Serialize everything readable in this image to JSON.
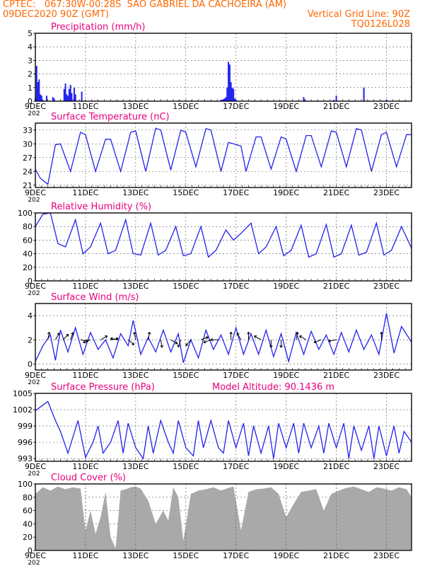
{
  "header": {
    "left_line1": "CPTEC:   067:30W-00:28S  SAO GABRIEL DA CACHOEIRA (AM)",
    "left_line2": "09DEC2020 90Z (GMT)",
    "right_line2": "Vertical Grid Line: 90Z",
    "right_line3": "TQ0126L028"
  },
  "colors": {
    "header": "#ff6600",
    "title": "#e6007e",
    "series": "#2222ee",
    "cloud": "#a9a9a9",
    "grid": "#555555"
  },
  "chart_data": [
    {
      "type": "bar",
      "title": "Precipitation (mm/h)",
      "ylim": [
        0,
        5
      ],
      "yticks": [
        0,
        1,
        2,
        3,
        4,
        5
      ],
      "x_range_days": [
        9,
        24
      ],
      "x_tick_days": [
        9,
        11,
        13,
        15,
        17,
        19,
        21,
        23
      ],
      "x_tick_labels": [
        "9DEC",
        "11DEC",
        "13DEC",
        "15DEC",
        "17DEC",
        "19DEC",
        "21DEC",
        "23DEC"
      ],
      "x_year_label": "202",
      "series": [
        {
          "x": [
            9.0,
            9.05,
            9.1,
            9.15,
            9.2,
            9.25,
            9.3,
            9.45,
            9.7,
            9.75,
            10.15,
            10.2,
            10.25,
            10.3,
            10.35,
            10.4,
            10.45,
            10.55,
            10.6,
            10.85,
            12.8,
            14.7,
            15.0,
            15.2,
            16.4,
            16.45,
            16.5,
            16.55,
            16.6,
            16.65,
            16.7,
            16.75,
            16.8,
            16.85,
            16.9,
            16.95,
            17.0,
            19.7,
            19.75,
            20.9,
            21.0,
            22.1,
            23.0
          ],
          "values": [
            0.2,
            2.6,
            1.4,
            1.6,
            0.5,
            0.4,
            0.1,
            0.4,
            0.3,
            0.2,
            0.9,
            1.3,
            0.5,
            0.4,
            0.9,
            1.2,
            0.6,
            1.0,
            0.5,
            0.7,
            0.05,
            0.05,
            0.05,
            0.05,
            0.1,
            0.1,
            0.15,
            0.2,
            0.3,
            1.0,
            2.9,
            2.7,
            1.4,
            1.0,
            0.9,
            0.2,
            0.1,
            0.3,
            0.1,
            0.1,
            0.4,
            1.0,
            0.1
          ]
        }
      ]
    },
    {
      "type": "line",
      "title": "Surface Temperature (nC)",
      "ylim": [
        20.5,
        34.5
      ],
      "yticks": [
        21,
        24,
        27,
        30,
        33
      ],
      "x_range_days": [
        9,
        24
      ],
      "x_tick_days": [
        9,
        11,
        13,
        15,
        17,
        19,
        21,
        23
      ],
      "x_tick_labels": [
        "9DEC",
        "11DEC",
        "13DEC",
        "15DEC",
        "17DEC",
        "19DEC",
        "21DEC",
        "23DEC"
      ],
      "x_year_label": "202",
      "series": [
        {
          "x": [
            9.0,
            9.2,
            9.5,
            9.8,
            10.0,
            10.4,
            10.8,
            11.0,
            11.4,
            11.8,
            12.0,
            12.4,
            12.8,
            13.0,
            13.4,
            13.8,
            14.0,
            14.4,
            14.8,
            15.0,
            15.4,
            15.8,
            16.0,
            16.4,
            16.7,
            16.9,
            17.2,
            17.4,
            17.8,
            18.0,
            18.4,
            18.8,
            19.0,
            19.4,
            19.8,
            20.0,
            20.4,
            20.8,
            21.0,
            21.4,
            21.8,
            22.0,
            22.4,
            22.8,
            23.0,
            23.4,
            23.8,
            24.0
          ],
          "values": [
            24.5,
            22.5,
            21.2,
            29.8,
            30.0,
            24.0,
            32.5,
            32.0,
            24.0,
            31.0,
            31.0,
            24.0,
            32.5,
            32.8,
            24.0,
            33.4,
            33.0,
            24.3,
            33.0,
            32.5,
            25.0,
            33.3,
            33.0,
            24.0,
            30.3,
            30.0,
            29.5,
            24.0,
            31.5,
            31.5,
            24.5,
            31.5,
            31.0,
            24.0,
            31.8,
            31.8,
            25.0,
            32.8,
            32.5,
            25.0,
            33.3,
            33.0,
            24.0,
            32.0,
            32.5,
            25.0,
            32.0,
            32.0
          ]
        }
      ]
    },
    {
      "type": "line",
      "title": "Relative Humidity (%)",
      "ylim": [
        0,
        100
      ],
      "yticks": [
        0,
        20,
        40,
        60,
        80,
        100
      ],
      "x_range_days": [
        9,
        24
      ],
      "x_tick_days": [
        9,
        11,
        13,
        15,
        17,
        19,
        21,
        23
      ],
      "x_tick_labels": [
        "9DEC",
        "11DEC",
        "13DEC",
        "15DEC",
        "17DEC",
        "19DEC",
        "21DEC",
        "23DEC"
      ],
      "x_year_label": "202",
      "series": [
        {
          "x": [
            9.0,
            9.3,
            9.6,
            9.9,
            10.2,
            10.6,
            10.9,
            11.2,
            11.6,
            11.9,
            12.2,
            12.6,
            12.9,
            13.2,
            13.6,
            13.9,
            14.2,
            14.6,
            14.9,
            15.2,
            15.6,
            15.9,
            16.2,
            16.6,
            16.9,
            17.2,
            17.6,
            17.9,
            18.2,
            18.6,
            18.9,
            19.2,
            19.6,
            19.9,
            20.2,
            20.6,
            20.9,
            21.2,
            21.6,
            21.9,
            22.2,
            22.6,
            22.9,
            23.2,
            23.6,
            24.0
          ],
          "values": [
            80,
            98,
            100,
            55,
            50,
            90,
            40,
            50,
            85,
            40,
            45,
            90,
            40,
            38,
            85,
            38,
            45,
            80,
            37,
            40,
            80,
            35,
            45,
            75,
            60,
            70,
            85,
            40,
            50,
            80,
            37,
            45,
            82,
            35,
            40,
            83,
            35,
            40,
            82,
            38,
            42,
            85,
            38,
            45,
            80,
            48
          ]
        }
      ]
    },
    {
      "type": "line",
      "title": "Surface Wind (m/s)",
      "ylim": [
        -0.5,
        5.0
      ],
      "yticks": [
        0,
        2,
        4
      ],
      "x_range_days": [
        9,
        24
      ],
      "x_tick_days": [
        9,
        11,
        13,
        15,
        17,
        19,
        21,
        23
      ],
      "x_tick_labels": [
        "9DEC",
        "11DEC",
        "13DEC",
        "15DEC",
        "17DEC",
        "19DEC",
        "21DEC",
        "23DEC"
      ],
      "x_year_label": "202",
      "series": [
        {
          "x": [
            9.0,
            9.3,
            9.6,
            9.8,
            10.0,
            10.3,
            10.6,
            10.9,
            11.2,
            11.5,
            11.8,
            12.1,
            12.4,
            12.7,
            12.9,
            13.2,
            13.5,
            13.8,
            14.1,
            14.4,
            14.7,
            14.9,
            15.2,
            15.5,
            15.8,
            16.1,
            16.4,
            16.7,
            17.0,
            17.3,
            17.6,
            17.9,
            18.2,
            18.5,
            18.8,
            19.1,
            19.4,
            19.7,
            20.0,
            20.3,
            20.6,
            20.9,
            21.2,
            21.5,
            21.8,
            22.1,
            22.4,
            22.7,
            23.0,
            23.3,
            23.6,
            24.0
          ],
          "values": [
            0.2,
            1.5,
            2.4,
            0.3,
            2.8,
            1.0,
            3.0,
            0.8,
            2.6,
            1.2,
            2.0,
            0.5,
            2.5,
            1.5,
            3.6,
            0.8,
            2.2,
            1.0,
            2.8,
            1.0,
            2.5,
            0.1,
            2.0,
            0.5,
            2.8,
            1.2,
            2.4,
            0.8,
            3.0,
            0.8,
            2.5,
            0.8,
            2.8,
            0.6,
            2.5,
            0.2,
            2.6,
            0.8,
            2.7,
            1.2,
            2.4,
            0.8,
            2.6,
            1.0,
            2.8,
            1.2,
            2.4,
            0.8,
            4.2,
            0.9,
            3.1,
            1.8
          ]
        }
      ],
      "vectors_deg": [
        80,
        60,
        45,
        70,
        350,
        200,
        30,
        10,
        170,
        320,
        100,
        80,
        280,
        330,
        250,
        230,
        20,
        200,
        180,
        90,
        120,
        90,
        150,
        270,
        270,
        80,
        150,
        200,
        190,
        90
      ],
      "vector_days": [
        9.5,
        9.8,
        10.1,
        10.4,
        10.8,
        11.2,
        11.6,
        12.0,
        12.3,
        12.7,
        13.0,
        13.5,
        14.0,
        14.4,
        14.8,
        15.2,
        15.6,
        16.0,
        16.3,
        16.8,
        17.2,
        17.5,
        18.0,
        18.4,
        18.8,
        19.4,
        19.8,
        20.4,
        21.0,
        22.8
      ]
    },
    {
      "type": "line",
      "title": "Surface Pressure (hPa)",
      "annotation": "Model Altitude: 90.1436 m",
      "ylim": [
        992.5,
        1005
      ],
      "yticks": [
        993,
        996,
        999,
        1002,
        1005
      ],
      "x_range_days": [
        9,
        24
      ],
      "x_tick_days": [
        9,
        11,
        13,
        15,
        17,
        19,
        21,
        23
      ],
      "x_tick_labels": [
        "9DEC",
        "11DEC",
        "13DEC",
        "15DEC",
        "17DEC",
        "19DEC",
        "21DEC",
        "23DEC"
      ],
      "x_year_label": "202",
      "series": [
        {
          "x": [
            9.0,
            9.2,
            9.5,
            9.8,
            10.0,
            10.3,
            10.5,
            10.7,
            11.0,
            11.3,
            11.5,
            11.7,
            12.0,
            12.3,
            12.5,
            12.7,
            13.0,
            13.3,
            13.5,
            13.7,
            14.0,
            14.3,
            14.5,
            14.7,
            15.0,
            15.3,
            15.5,
            15.7,
            16.0,
            16.3,
            16.5,
            16.7,
            17.0,
            17.3,
            17.5,
            17.7,
            18.0,
            18.3,
            18.5,
            18.7,
            19.0,
            19.3,
            19.5,
            19.7,
            20.0,
            20.3,
            20.5,
            20.7,
            21.0,
            21.3,
            21.5,
            21.7,
            22.0,
            22.3,
            22.5,
            22.7,
            23.0,
            23.3,
            23.5,
            23.7,
            24.0
          ],
          "values": [
            1001.8,
            1002.5,
            1003.5,
            1000.0,
            998.0,
            994.0,
            997.0,
            1000.0,
            993.2,
            996.0,
            999.0,
            994.0,
            996.0,
            1000.0,
            994.0,
            999.5,
            995.0,
            993.0,
            999.0,
            994.0,
            1000.0,
            996.0,
            994.0,
            1000.0,
            995.0,
            993.5,
            1000.0,
            995.0,
            1000.0,
            995.0,
            994.0,
            1000.0,
            995.0,
            999.5,
            993.5,
            999.0,
            994.0,
            999.0,
            993.0,
            999.5,
            995.0,
            999.5,
            994.0,
            999.5,
            995.0,
            999.0,
            994.0,
            999.5,
            995.0,
            999.5,
            993.0,
            999.0,
            994.5,
            999.0,
            993.0,
            999.0,
            993.5,
            999.0,
            994.0,
            998.0,
            996.0
          ]
        }
      ]
    },
    {
      "type": "area",
      "title": "Cloud Cover (%)",
      "ylim": [
        0,
        100
      ],
      "yticks": [
        0,
        20,
        40,
        60,
        80,
        100
      ],
      "x_range_days": [
        9,
        24
      ],
      "x_tick_days": [
        9,
        11,
        13,
        15,
        17,
        19,
        21,
        23
      ],
      "x_tick_labels": [
        "9DEC",
        "11DEC",
        "13DEC",
        "15DEC",
        "17DEC",
        "19DEC",
        "21DEC",
        "23DEC"
      ],
      "x_year_label": "202",
      "series": [
        {
          "x": [
            9.0,
            9.3,
            9.6,
            9.9,
            10.2,
            10.5,
            10.8,
            11.0,
            11.2,
            11.4,
            11.6,
            11.8,
            12.0,
            12.2,
            12.4,
            12.6,
            12.8,
            13.0,
            13.2,
            13.5,
            13.8,
            14.1,
            14.3,
            14.5,
            14.7,
            14.9,
            15.2,
            15.5,
            15.8,
            16.1,
            16.4,
            16.7,
            16.9,
            17.2,
            17.5,
            17.8,
            18.1,
            18.4,
            18.7,
            19.0,
            19.3,
            19.6,
            19.9,
            20.2,
            20.5,
            20.8,
            21.1,
            21.4,
            21.7,
            22.0,
            22.3,
            22.6,
            22.9,
            23.2,
            23.5,
            23.8,
            24.0
          ],
          "values": [
            85,
            95,
            90,
            96,
            92,
            95,
            93,
            30,
            60,
            25,
            50,
            88,
            20,
            3,
            90,
            92,
            95,
            96,
            93,
            75,
            40,
            60,
            45,
            95,
            80,
            15,
            85,
            90,
            92,
            95,
            90,
            94,
            96,
            30,
            88,
            92,
            93,
            95,
            85,
            50,
            70,
            88,
            90,
            92,
            60,
            85,
            90,
            94,
            96,
            92,
            88,
            95,
            93,
            90,
            95,
            92,
            80
          ]
        }
      ]
    }
  ]
}
